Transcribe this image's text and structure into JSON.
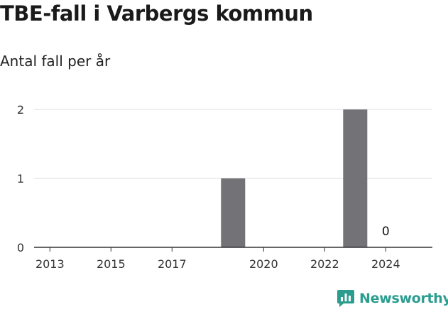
{
  "title": "TBE-fall i Varbergs kommun",
  "subtitle": "Antal fall per år",
  "brand": {
    "name": "Newsworthy",
    "icon": "newsworthy-logo-icon",
    "color": "#2a9d8f"
  },
  "chart_data": {
    "type": "bar",
    "categories": [
      "2013",
      "2014",
      "2015",
      "2016",
      "2017",
      "2018",
      "2019",
      "2020",
      "2021",
      "2022",
      "2023",
      "2024"
    ],
    "values": [
      0,
      0,
      0,
      0,
      0,
      0,
      1,
      0,
      0,
      0,
      2,
      0
    ],
    "x_tick_labels": [
      "2013",
      "2015",
      "2017",
      "2020",
      "2022",
      "2024"
    ],
    "y_ticks": [
      0,
      1,
      2
    ],
    "ylim": [
      0,
      2
    ],
    "bar_color": "#737277",
    "data_labels": [
      {
        "category": "2024",
        "text": "0"
      }
    ],
    "grid": true,
    "legend": "none"
  }
}
